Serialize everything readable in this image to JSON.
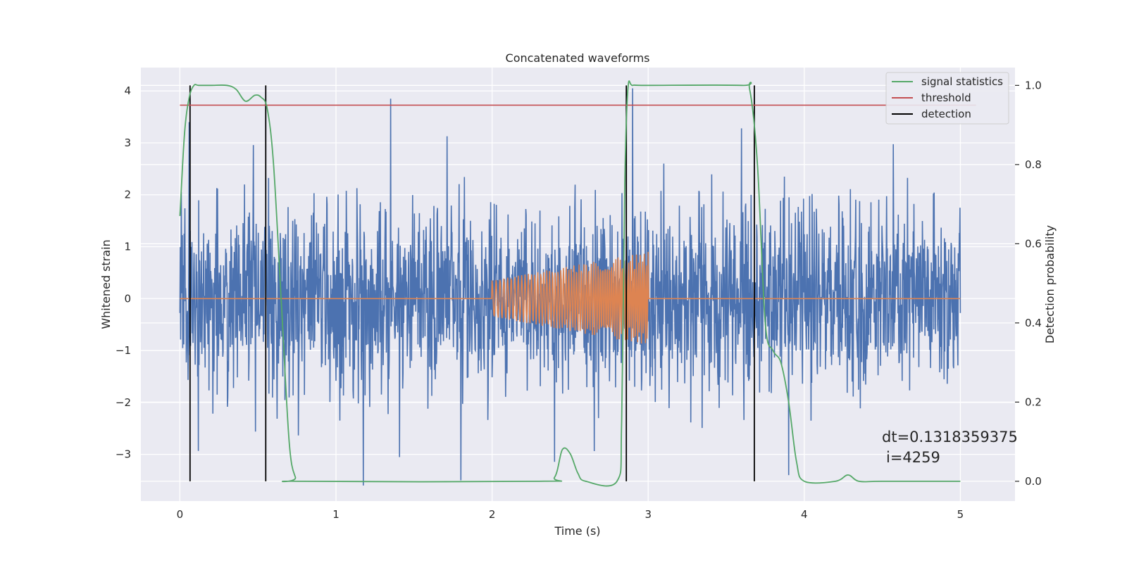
{
  "chart_data": {
    "type": "line",
    "title": "Concatenated waveforms",
    "xlabel": "Time (s)",
    "ylabel": "Whitened strain",
    "y2label": "Detection probability",
    "xlim": [
      -0.25,
      5.35
    ],
    "ylim": [
      -3.9,
      4.45
    ],
    "y2lim": [
      -0.05,
      1.045
    ],
    "xticks": [
      0,
      1,
      2,
      3,
      4,
      5
    ],
    "yticks": [
      -3,
      -2,
      -1,
      0,
      1,
      2,
      3,
      4
    ],
    "y2ticks": [
      0.0,
      0.2,
      0.4,
      0.6,
      0.8,
      1.0
    ],
    "grid": true,
    "legend_position": "top-right",
    "series": [
      {
        "name": "",
        "color": "#4c72b0",
        "kind": "noise",
        "x_range": [
          0,
          5
        ],
        "amplitude_std": 0.9,
        "peaks": [
          3.4,
          3.85,
          4.05,
          2.6,
          -3.5,
          -3.4
        ],
        "axis": "left"
      },
      {
        "name": "",
        "color": "#dd8452",
        "kind": "chirp",
        "x_range": [
          0,
          5
        ],
        "chirp_start": 2.0,
        "chirp_end": 3.0,
        "chirp_amplitude": [
          0.35,
          0.9
        ],
        "axis": "left"
      },
      {
        "name": "signal statistics",
        "color": "#55a868",
        "axis": "right",
        "x": [
          0.0,
          0.03,
          0.06,
          0.09,
          0.12,
          0.2,
          0.3,
          0.36,
          0.42,
          0.48,
          0.52,
          0.56,
          0.6,
          0.65,
          0.7,
          0.74,
          0.78,
          2.3,
          2.4,
          2.45,
          2.5,
          2.55,
          2.6,
          2.8,
          2.83,
          2.85,
          2.87,
          2.9,
          3.0,
          3.6,
          3.65,
          3.7,
          3.75,
          3.8,
          3.85,
          3.9,
          3.95,
          4.0,
          4.2,
          4.28,
          4.35,
          4.5,
          5.0
        ],
        "y": [
          0.67,
          0.88,
          0.97,
          1.0,
          1.0,
          1.0,
          1.0,
          0.99,
          0.96,
          0.975,
          0.97,
          0.94,
          0.8,
          0.45,
          0.1,
          0.01,
          0.0,
          0.0,
          0.01,
          0.08,
          0.07,
          0.02,
          0.0,
          0.0,
          0.15,
          0.75,
          0.99,
          1.0,
          1.0,
          1.0,
          0.99,
          0.8,
          0.4,
          0.33,
          0.3,
          0.2,
          0.05,
          0.0,
          0.0,
          0.016,
          0.0,
          0.0,
          0.0
        ]
      },
      {
        "name": "threshold",
        "color": "#c44e52",
        "axis": "right",
        "x": [
          0.0,
          5.1
        ],
        "y": [
          0.95,
          0.95
        ]
      },
      {
        "name": "detection",
        "color": "#000000",
        "axis": "right",
        "kind": "vlines",
        "x": [
          0.065,
          0.55,
          2.86,
          3.68
        ],
        "y_range": [
          0.0,
          1.0
        ]
      }
    ],
    "annotations": [
      "dt=0.1318359375",
      "i=4259"
    ]
  }
}
